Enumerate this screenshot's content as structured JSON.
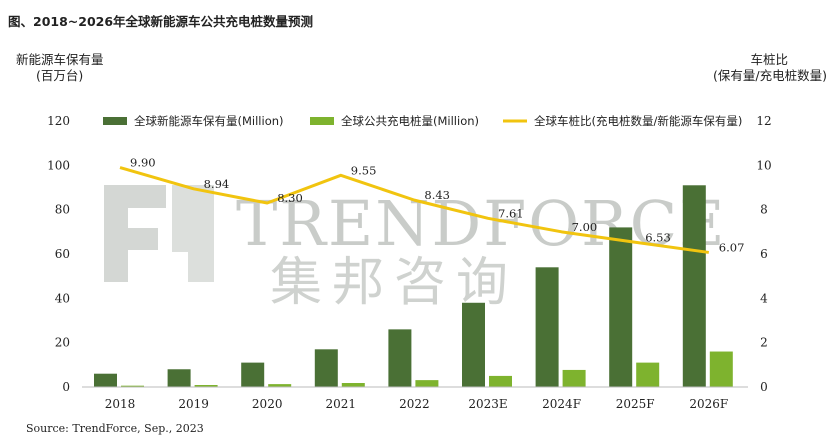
{
  "chart_data": {
    "type": "bar+line",
    "title": "图、2018~2026年全球新能源车公共充电桩数量预测",
    "y_left_label_line1": "新能源车保有量",
    "y_left_label_line2": "(百万台)",
    "y_right_label_line1": "车桩比",
    "y_right_label_line2": "(保有量/充电桩数量)",
    "y_left_ticks": [
      "120",
      "100",
      "80",
      "60",
      "40",
      "20",
      "0"
    ],
    "y_right_ticks": [
      "12",
      "10",
      "8",
      "6",
      "4",
      "2",
      "0"
    ],
    "y_left_lim": [
      0,
      120
    ],
    "y_right_lim": [
      0,
      12
    ],
    "categories": [
      "2018",
      "2019",
      "2020",
      "2021",
      "2022",
      "2023E",
      "2024F",
      "2025F",
      "2026F"
    ],
    "series": [
      {
        "name": "全球新能源车保有量(Million)",
        "kind": "bar",
        "axis": "left",
        "color": "#4a7035",
        "values": [
          6,
          8,
          11,
          17,
          26,
          38,
          54,
          72,
          91
        ]
      },
      {
        "name": "全球公共充电桩量(Million)",
        "kind": "bar",
        "axis": "left",
        "color": "#7eb32e",
        "values": [
          0.6,
          0.9,
          1.3,
          1.8,
          3.1,
          5,
          7.7,
          11,
          16
        ]
      },
      {
        "name": "全球车桩比(充电桩数量/新能源车保有量)",
        "kind": "line",
        "axis": "right",
        "color": "#f1c40f",
        "values": [
          9.9,
          8.94,
          8.3,
          9.55,
          8.43,
          7.61,
          7.0,
          6.53,
          6.07
        ],
        "labels": [
          "9.90",
          "8.94",
          "8.30",
          "9.55",
          "8.43",
          "7.61",
          "7.00",
          "6.53",
          "6.07"
        ]
      }
    ],
    "legend_position": "top",
    "grid": false
  },
  "watermark": {
    "en": "TRENDFORCE",
    "cn": "集邦咨询"
  },
  "source": "Source: TrendForce, Sep., 2023"
}
